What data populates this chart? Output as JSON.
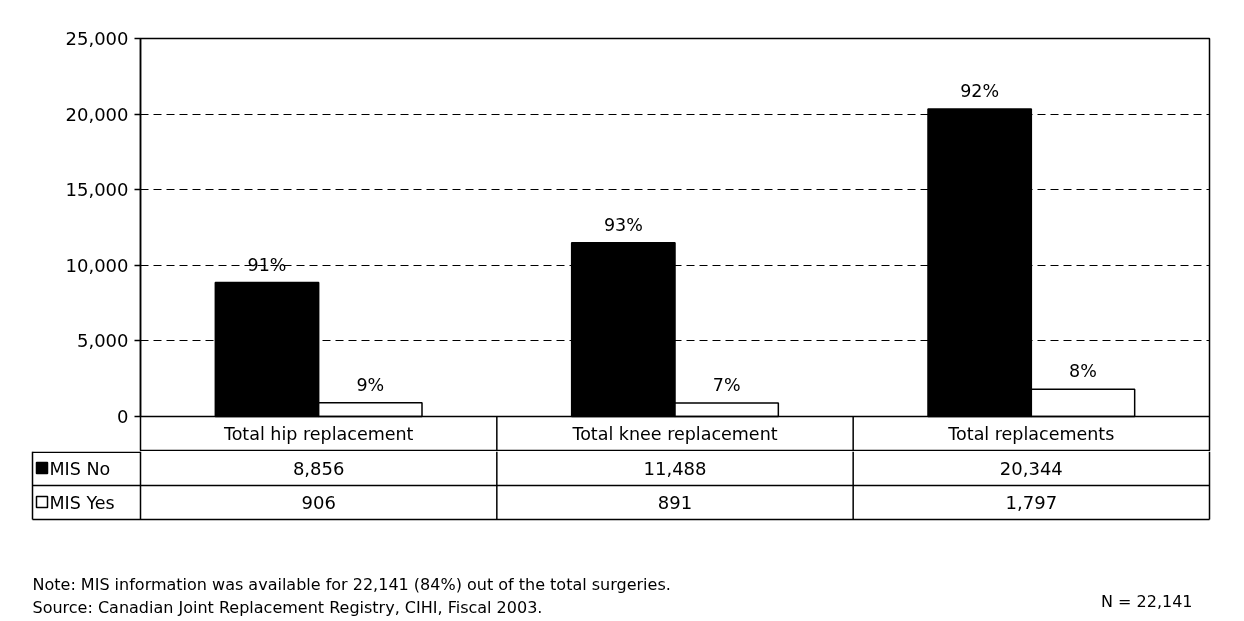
{
  "chart_data": {
    "type": "bar",
    "categories": [
      "Total hip replacement",
      "Total knee replacement",
      "Total replacements"
    ],
    "series": [
      {
        "name": "MIS No",
        "color": "#000000",
        "values": [
          8856,
          11488,
          20344
        ],
        "value_labels": [
          "8,856",
          "11,488",
          "20,344"
        ]
      },
      {
        "name": "MIS Yes",
        "color": "#ffffff",
        "values": [
          906,
          891,
          1797
        ],
        "value_labels": [
          "906",
          "891",
          "1,797"
        ]
      }
    ],
    "ylim": [
      0,
      25000
    ],
    "yticks": [
      0,
      {
        "value": 5000,
        "label": "5,000"
      },
      {
        "value": 10000,
        "label": "10,000"
      },
      {
        "value": 15000,
        "label": "15,000"
      },
      {
        "value": 20000,
        "label": "20,000"
      },
      {
        "value": 25000,
        "label": "25,000"
      }
    ],
    "grid": "y",
    "legend": "bottom left",
    "annotations": [
      {
        "text": "91%",
        "x": "Total hip replacement",
        "y": 8856
      },
      {
        "text": "9%",
        "x": "Total hip replacement",
        "y": 906
      },
      {
        "text": "93%",
        "x": "Total knee replacement",
        "y": 11488
      },
      {
        "text": "7%",
        "x": "Total knee replacement",
        "y": 891
      },
      {
        "text": "92%",
        "x": "Total replacements",
        "y": 20344
      },
      {
        "text": "8%",
        "x": "Total replacements",
        "y": 1797
      },
      "Note: MIS information was available for 22,141 (84%) out of the total surgeries.",
      "Source: Canadian Joint Replacement Registry, CIHI, Fiscal 2003.",
      "N = 22,141"
    ]
  }
}
